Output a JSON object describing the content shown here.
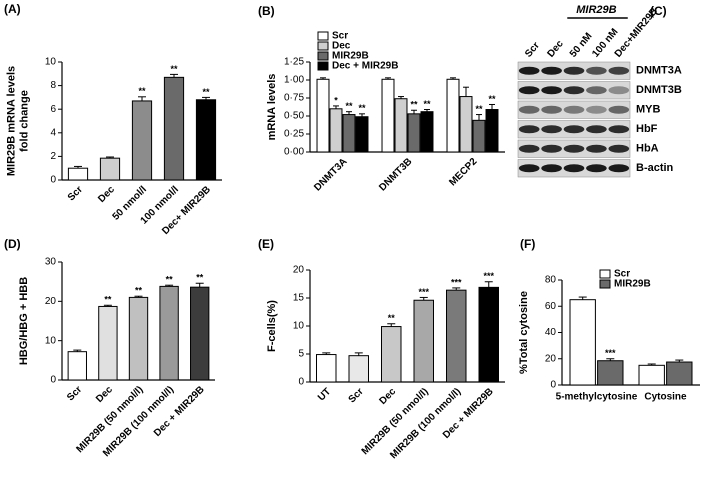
{
  "chart_data": [
    {
      "type": "bar",
      "panel": "(A)",
      "ylabel": [
        "MIR29B mRNA levels",
        "fold change"
      ],
      "categories": [
        "Scr",
        "Dec",
        "50 nmol/l",
        "100 nmol/l",
        "Dec+ MIR29B"
      ],
      "values": [
        1.0,
        1.85,
        6.7,
        8.7,
        6.8
      ],
      "errors": [
        0.15,
        0.1,
        0.35,
        0.25,
        0.2
      ],
      "significance": [
        null,
        null,
        "**",
        "**",
        "**"
      ],
      "colors": [
        "#ffffff",
        "#cfcfcf",
        "#8c8c8c",
        "#6a6a6a",
        "#000000"
      ],
      "ylim": [
        0,
        10
      ],
      "yticks": [
        0,
        2,
        4,
        6,
        8,
        10
      ],
      "x_label_rotation": 45
    },
    {
      "type": "bar",
      "panel": "(B)",
      "ylabel": [
        "mRNA levels"
      ],
      "categories": [
        "DNMT3A",
        "DNMT3B",
        "MECP2"
      ],
      "series": [
        {
          "name": "Scr",
          "color": "#ffffff",
          "values": [
            1.01,
            1.01,
            1.01
          ],
          "errors": [
            0.02,
            0.02,
            0.02
          ],
          "significance": [
            null,
            null,
            null
          ]
        },
        {
          "name": "Dec",
          "color": "#cfcfcf",
          "values": [
            0.6,
            0.74,
            0.77
          ],
          "errors": [
            0.04,
            0.03,
            0.13
          ],
          "significance": [
            "*",
            null,
            null
          ]
        },
        {
          "name": "MIR29B",
          "color": "#6a6a6a",
          "values": [
            0.52,
            0.53,
            0.44
          ],
          "errors": [
            0.04,
            0.05,
            0.08
          ],
          "significance": [
            "**",
            "**",
            "**"
          ]
        },
        {
          "name": "Dec + MIR29B",
          "color": "#000000",
          "values": [
            0.49,
            0.56,
            0.59
          ],
          "errors": [
            0.04,
            0.03,
            0.07
          ],
          "significance": [
            "**",
            "**",
            "**"
          ]
        }
      ],
      "ylim": [
        0,
        1.25
      ],
      "yticks": [
        {
          "value": 0,
          "label": "0·00"
        },
        {
          "value": 0.25,
          "label": "0·25"
        },
        {
          "value": 0.5,
          "label": "0·50"
        },
        {
          "value": 0.75,
          "label": "0·75"
        },
        {
          "value": 1,
          "label": "1·00"
        },
        {
          "value": 1.25,
          "label": "1·25"
        }
      ],
      "x_label_rotation": 45
    },
    {
      "type": "bar",
      "panel": "(D)",
      "ylabel": [
        "HBG/HBG + HBB"
      ],
      "categories": [
        "Scr",
        "Dec",
        "MIR29B (50 nmol/l)",
        "MIR29B (100 nmol/l)",
        "Dec + MIR29B"
      ],
      "values": [
        7.2,
        18.7,
        21,
        23.8,
        23.6
      ],
      "errors": [
        0.4,
        0.3,
        0.3,
        0.3,
        1.0
      ],
      "significance": [
        null,
        "**",
        "**",
        "**",
        "**"
      ],
      "colors": [
        "#ffffff",
        "#e0e0e0",
        "#c0c0c0",
        "#9a9a9a",
        "#3c3c3c"
      ],
      "ylim": [
        0,
        30
      ],
      "yticks": [
        0,
        10,
        20,
        30
      ],
      "x_label_rotation": 45
    },
    {
      "type": "bar",
      "panel": "(E)",
      "ylabel": [
        "F-cells(%)"
      ],
      "categories": [
        "UT",
        "Scr",
        "Dec",
        "MIR29B (50 nmol/l)",
        "MIR29B (100 nmol/l)",
        "Dec + MIR29B"
      ],
      "values": [
        4.9,
        4.7,
        9.9,
        14.6,
        16.4,
        16.9
      ],
      "errors": [
        0.3,
        0.5,
        0.5,
        0.5,
        0.4,
        1.0
      ],
      "significance": [
        null,
        null,
        "**",
        "***",
        "***",
        "***"
      ],
      "colors": [
        "#ffffff",
        "#e8e8e8",
        "#c8c8c8",
        "#a8a8a8",
        "#7a7a7a",
        "#000000"
      ],
      "ylim": [
        0,
        20
      ],
      "yticks": [
        0,
        5,
        10,
        15,
        20
      ],
      "x_label_rotation": 45
    },
    {
      "type": "bar",
      "panel": "(F)",
      "ylabel": [
        "%Total cytosine"
      ],
      "categories": [
        "5-methylcytosine",
        "Cytosine"
      ],
      "series": [
        {
          "name": "Scr",
          "color": "#ffffff",
          "values": [
            65,
            15
          ],
          "errors": [
            2,
            1
          ],
          "significance": [
            null,
            null
          ]
        },
        {
          "name": "MIR29B",
          "color": "#6a6a6a",
          "values": [
            18.5,
            17.5
          ],
          "errors": [
            1.5,
            1.5
          ],
          "significance": [
            "***",
            null
          ]
        }
      ],
      "ylim": [
        0,
        80
      ],
      "yticks": [
        0,
        20,
        40,
        60,
        80
      ],
      "x_label_rotation": 0
    }
  ],
  "blot": {
    "panel": "(C)",
    "header": "MIR29B",
    "lanes": [
      "Scr",
      "Dec",
      "50 nM",
      "100 nM",
      "Dec+MIR29B"
    ],
    "rows": [
      "DNMT3A",
      "DNMT3B",
      "MYB",
      "HbF",
      "HbA",
      "B-actin"
    ]
  }
}
